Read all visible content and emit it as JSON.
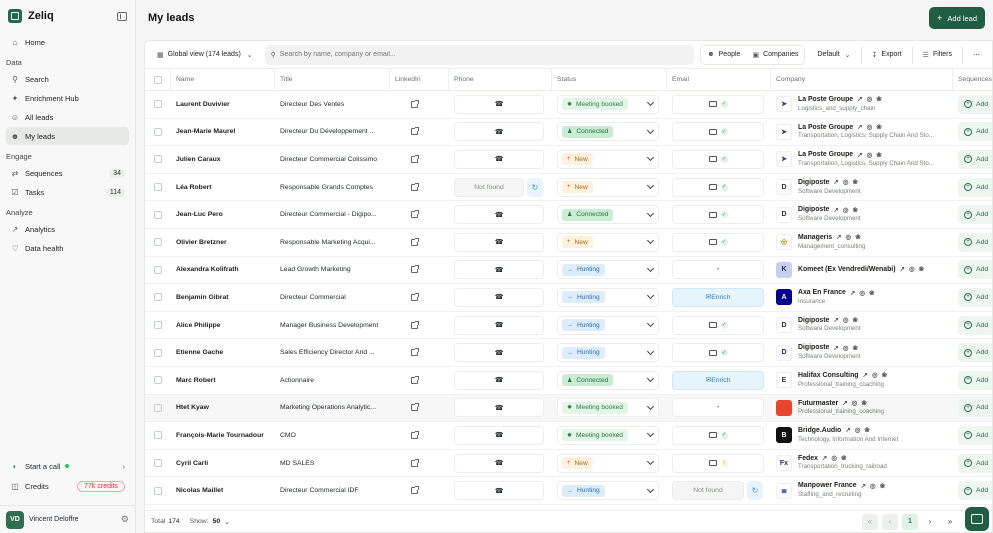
{
  "app": {
    "name": "Zeliq"
  },
  "sidebar": {
    "top": [
      {
        "label": "Home",
        "icon": "home-icon"
      }
    ],
    "sections": [
      {
        "title": "Data",
        "items": [
          {
            "label": "Search",
            "icon": "search-icon"
          },
          {
            "label": "Enrichment Hub",
            "icon": "sparkle-icon"
          },
          {
            "label": "All leads",
            "icon": "users-icon"
          },
          {
            "label": "My leads",
            "icon": "user-group-icon",
            "active": true
          }
        ]
      },
      {
        "title": "Engage",
        "items": [
          {
            "label": "Sequences",
            "icon": "sequence-icon",
            "count": "34"
          },
          {
            "label": "Tasks",
            "icon": "tasks-icon",
            "count": "114"
          }
        ]
      },
      {
        "title": "Analyze",
        "items": [
          {
            "label": "Analytics",
            "icon": "chart-icon"
          },
          {
            "label": "Data health",
            "icon": "heart-icon"
          }
        ]
      }
    ],
    "start_call": "Start a call",
    "credits_label": "Credits",
    "credits_value": "77k credits",
    "user": {
      "initials": "VD",
      "name": "Vincent Deloffre"
    }
  },
  "header": {
    "title": "My leads",
    "add_lead": "Add lead"
  },
  "toolbar": {
    "view": "Global view (174 leads)",
    "search_placeholder": "Search by name, company or email...",
    "people": "People",
    "companies": "Companies",
    "default": "Default",
    "export": "Export",
    "filters": "Filters",
    "more": "⋯"
  },
  "columns": [
    "Name",
    "Title",
    "LinkedIn",
    "Phone",
    "Status",
    "Email",
    "Company",
    "Sequences"
  ],
  "status_styles": {
    "Meeting booked": {
      "bg": "#e3f5e6",
      "fg": "#2a7d45",
      "icon": "✹"
    },
    "Connected": {
      "bg": "#c9ecd3",
      "fg": "#1e7a43",
      "icon": "♟"
    },
    "New": {
      "bg": "#fff1dc",
      "fg": "#a86a12",
      "icon": "+"
    },
    "Hunting": {
      "bg": "#dcecfb",
      "fg": "#2b6fb3",
      "icon": "→"
    }
  },
  "rows": [
    {
      "name": "Laurent Duvivier",
      "title": "Directeur Des Ventes",
      "phone": "",
      "status": "Meeting booked",
      "email": "ok",
      "company": "La Poste Groupe",
      "sub": "Logistics_and_supply_chain",
      "logo": "laposte",
      "seq": "Add"
    },
    {
      "name": "Jean-Marie Maurel",
      "title": "Directeur Du Développement ...",
      "phone": "",
      "status": "Connected",
      "email": "ok",
      "company": "La Poste Groupe",
      "sub": "Transportation, Logistics, Supply Chain And Sto...",
      "logo": "laposte",
      "seq": "Add"
    },
    {
      "name": "Julien Caraux",
      "title": "Directeur Commercial Colissimo",
      "phone": "",
      "status": "New",
      "email": "ok",
      "company": "La Poste Groupe",
      "sub": "Transportation, Logistics, Supply Chain And Sto...",
      "logo": "laposte",
      "seq": "Add"
    },
    {
      "name": "Léa Robert",
      "title": "Responsable Grands Comptes",
      "phone": "Not found",
      "status": "New",
      "email": "ok",
      "company": "Digiposte",
      "sub": "Software Development",
      "logo": "digiposte",
      "seq": "Add"
    },
    {
      "name": "Jean-Luc Pero",
      "title": "Directeur Commercial - Digipo...",
      "phone": "",
      "status": "Connected",
      "email": "ok",
      "company": "Digiposte",
      "sub": "Software Development",
      "logo": "digiposte",
      "seq": "Add"
    },
    {
      "name": "Olivier Bretzner",
      "title": "Responsable Marketing Acqui...",
      "phone": "",
      "status": "New",
      "email": "ok",
      "company": "Manageris",
      "sub": "Management_consulting",
      "logo": "manageris",
      "seq": "Add"
    },
    {
      "name": "Alexandra Kolifrath",
      "title": "Lead Growth Marketing",
      "phone": "",
      "status": "Hunting",
      "email": "tiny",
      "company": "Komeet (Ex Vendredi/Wenabi)",
      "sub": "",
      "logo": "komeet",
      "seq": "Add"
    },
    {
      "name": "Benjamin Gibrat",
      "title": "Directeur Commercial",
      "phone": "",
      "status": "Hunting",
      "email": "Enrich",
      "company": "Axa En France",
      "sub": "Insurance",
      "logo": "axa",
      "seq": "Add"
    },
    {
      "name": "Alice Philippe",
      "title": "Manager Business Development",
      "phone": "",
      "status": "Hunting",
      "email": "ok",
      "company": "Digiposte",
      "sub": "Software Development",
      "logo": "digiposte",
      "seq": "Add"
    },
    {
      "name": "Etienne Gache",
      "title": "Sales Efficiency Director And ...",
      "phone": "",
      "status": "Hunting",
      "email": "ok",
      "company": "Digiposte",
      "sub": "Software Development",
      "logo": "digiposte",
      "seq": "Add"
    },
    {
      "name": "Marc Robert",
      "title": "Actionnaire",
      "phone": "",
      "status": "Connected",
      "email": "Enrich",
      "company": "Halifax Consulting",
      "sub": "Professional_training_coaching",
      "logo": "halifax",
      "seq": "Add"
    },
    {
      "name": "Htet Kyaw",
      "title": "Marketing Operations Analytic...",
      "phone": "",
      "status": "Meeting booked",
      "email": "tiny",
      "company": "Futurmaster",
      "sub": "Professional_training_coaching",
      "logo": "futurmaster",
      "seq": "Add",
      "hover": true
    },
    {
      "name": "François-Marie Tournadour",
      "title": "CMO",
      "phone": "",
      "status": "Meeting booked",
      "email": "ok",
      "company": "Bridge.Audio",
      "sub": "Technology, Information And Internet",
      "logo": "bridge",
      "seq": "Add"
    },
    {
      "name": "Cyril Carli",
      "title": "MD SALES",
      "phone": "",
      "status": "New",
      "email": "warn",
      "company": "Fedex",
      "sub": "Transportation_trucking_railroad",
      "logo": "fedex",
      "seq": "Add"
    },
    {
      "name": "Nicolas Maillet",
      "title": "Directeur Commercial IDF",
      "phone": "",
      "status": "Hunting",
      "email": "Not found",
      "company": "Manpower France",
      "sub": "Staffing_and_recruiting",
      "logo": "manpower",
      "seq": "Add"
    }
  ],
  "logos": {
    "laposte": {
      "bg": "#ffffff",
      "fg": "#1c3f94",
      "glyph": "➤"
    },
    "digiposte": {
      "bg": "#ffffff",
      "fg": "#1a2a8a",
      "glyph": "D"
    },
    "manageris": {
      "bg": "#ffffff",
      "fg": "#b58f00",
      "glyph": "◎"
    },
    "komeet": {
      "bg": "#c9cdf0",
      "fg": "#1a2a6a",
      "glyph": "K"
    },
    "axa": {
      "bg": "#00008f",
      "fg": "#ffffff",
      "glyph": "A"
    },
    "halifax": {
      "bg": "#ffffff",
      "fg": "#333333",
      "glyph": "E"
    },
    "futurmaster": {
      "bg": "#e8452c",
      "fg": "#ffffff",
      "glyph": ""
    },
    "bridge": {
      "bg": "#111111",
      "fg": "#ffffff",
      "glyph": "B"
    },
    "fedex": {
      "bg": "#ffffff",
      "fg": "#4d148c",
      "glyph": "Fx"
    },
    "manpower": {
      "bg": "#ffffff",
      "fg": "#1a3f8f",
      "glyph": "≣"
    }
  },
  "footer": {
    "total_label": "Total",
    "total": "174",
    "show_label": "Show:",
    "show": "50",
    "page": "1"
  },
  "icons": {
    "phone": "☎",
    "refresh": "↻",
    "enrich": "✉"
  }
}
